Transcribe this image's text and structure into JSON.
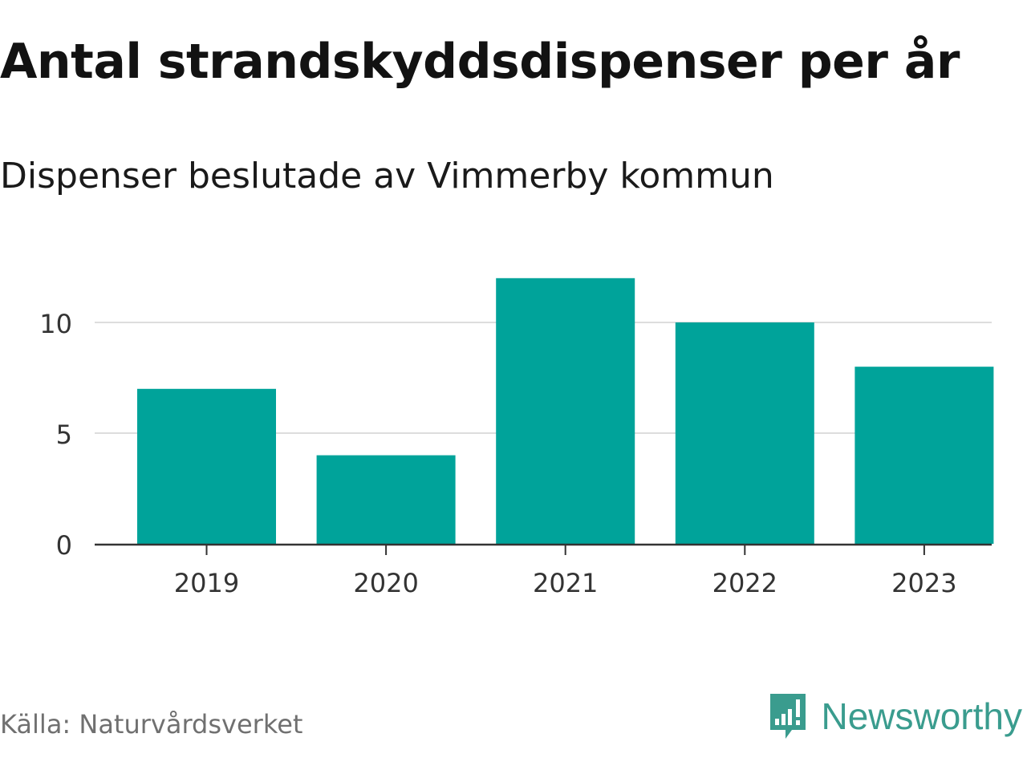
{
  "header": {
    "title": "Antal strandskyddsdispenser per år",
    "subtitle": "Dispenser beslutade av Vimmerby kommun"
  },
  "footer": {
    "source": "Källa: Naturvårdsverket",
    "brand": "Newsworthy",
    "brand_icon": "newsworthy-logo-icon"
  },
  "colors": {
    "bar": "#00A39A",
    "grid": "#DDDDDD",
    "axis": "#333333",
    "brand": "#3A9C8E"
  },
  "chart_data": {
    "type": "bar",
    "title": "Antal strandskyddsdispenser per år",
    "subtitle": "Dispenser beslutade av Vimmerby kommun",
    "categories": [
      "2019",
      "2020",
      "2021",
      "2022",
      "2023"
    ],
    "values": [
      7,
      4,
      12,
      10,
      8
    ],
    "xlabel": "",
    "ylabel": "",
    "ylim": [
      0,
      12
    ],
    "yticks": [
      0,
      5,
      10
    ],
    "ytick_labels": [
      "0",
      "5",
      "10"
    ],
    "grid": true,
    "legend": "none"
  }
}
